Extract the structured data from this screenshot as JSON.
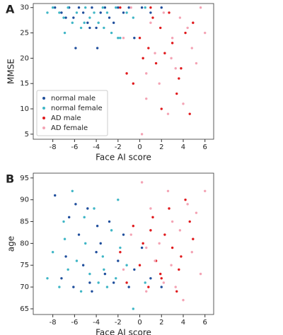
{
  "chart_data": [
    {
      "type": "scatter",
      "panel_label": "A",
      "xlabel": "Face AI score",
      "ylabel": "MMSE",
      "xlim": [
        -9.8,
        6.8
      ],
      "xticks": [
        -8,
        -6,
        -4,
        -2,
        0,
        2,
        4,
        6
      ],
      "ylim": [
        4,
        30.8
      ],
      "yticks": [
        5,
        10,
        15,
        20,
        25,
        30
      ],
      "legend": "lower left",
      "series": [
        {
          "name": "normal male",
          "color": "#1f4e9c",
          "x": [
            -7.8,
            -7.2,
            -6.5,
            -6.1,
            -5.6,
            -5.2,
            -4.8,
            -4.4,
            -4.0,
            -3.6,
            -3.2,
            -2.8,
            -2.4,
            -2.0,
            -1.5,
            -1.0,
            -0.5,
            0.2,
            1.0,
            2.0,
            -5.9,
            -3.9,
            -6.8,
            -4.6
          ],
          "values": [
            30,
            29,
            30,
            28,
            30,
            29,
            27,
            30,
            26,
            29,
            30,
            28,
            27,
            30,
            29,
            30,
            24,
            30,
            29,
            30,
            22,
            22,
            28,
            26
          ]
        },
        {
          "name": "normal female",
          "color": "#3fb6c6",
          "x": [
            -8.5,
            -8.0,
            -7.4,
            -7.0,
            -6.6,
            -6.2,
            -5.8,
            -5.4,
            -5.0,
            -4.6,
            -4.2,
            -3.8,
            -3.4,
            -3.0,
            -2.6,
            -2.2,
            -1.8,
            -1.2,
            -0.6,
            0.5,
            -6.9,
            -5.1,
            -3.3,
            -2.0
          ],
          "values": [
            29,
            30,
            29,
            28,
            30,
            27,
            29,
            26,
            30,
            28,
            29,
            27,
            30,
            29,
            25,
            30,
            24,
            29,
            28,
            30,
            25,
            27,
            26,
            24
          ]
        },
        {
          "name": "AD male",
          "color": "#e0191c",
          "x": [
            -1.8,
            -1.2,
            -0.6,
            0.0,
            0.3,
            0.8,
            1.2,
            1.5,
            1.9,
            2.3,
            2.7,
            3.0,
            3.4,
            3.8,
            4.2,
            4.6,
            4.9,
            2.0,
            3.6,
            1.0
          ],
          "values": [
            30,
            17,
            15,
            24,
            20,
            22,
            28,
            19,
            26,
            21,
            29,
            23,
            13,
            18,
            25,
            9,
            27,
            10,
            16,
            30
          ]
        },
        {
          "name": "AD female",
          "color": "#f4a3b4",
          "x": [
            -1.5,
            -0.8,
            0.2,
            0.6,
            1.0,
            1.4,
            1.8,
            2.2,
            2.6,
            3.0,
            3.3,
            3.7,
            4.0,
            4.4,
            4.8,
            5.2,
            5.6,
            6.0,
            0.6,
            2.9
          ],
          "values": [
            24,
            30,
            5,
            12,
            27,
            21,
            15,
            29,
            9,
            24,
            18,
            28,
            11,
            26,
            22,
            19,
            30,
            25,
            17,
            20
          ]
        }
      ]
    },
    {
      "type": "scatter",
      "panel_label": "B",
      "xlabel": "Face AI score",
      "ylabel": "age",
      "xlim": [
        -9.8,
        6.8
      ],
      "xticks": [
        -8,
        -6,
        -4,
        -2,
        0,
        2,
        4,
        6
      ],
      "ylim": [
        63.7,
        96.1
      ],
      "yticks": [
        65,
        70,
        75,
        80,
        85,
        90,
        95
      ],
      "series": [
        {
          "color": "#1f4e9c",
          "x": [
            -7.8,
            -7.2,
            -6.5,
            -6.1,
            -5.6,
            -5.2,
            -4.8,
            -4.4,
            -4.0,
            -3.6,
            -3.2,
            -2.8,
            -2.4,
            -2.0,
            -1.5,
            -1.0,
            -0.5,
            0.2,
            1.0,
            2.0,
            -5.9,
            -3.9,
            -6.8,
            -4.6
          ],
          "values": [
            91,
            72,
            86,
            70,
            82,
            75,
            88,
            69,
            78,
            80,
            73,
            85,
            71,
            76,
            82,
            70,
            74,
            79,
            72,
            70,
            89,
            84,
            77,
            71
          ]
        },
        {
          "color": "#3fb6c6",
          "x": [
            -8.5,
            -8.0,
            -7.4,
            -7.0,
            -6.6,
            -6.2,
            -5.8,
            -5.4,
            -5.0,
            -4.6,
            -4.2,
            -3.8,
            -3.4,
            -3.0,
            -2.6,
            -2.2,
            -1.8,
            -1.2,
            -0.6,
            0.5,
            -6.9,
            -5.1,
            -3.3,
            -2.0
          ],
          "values": [
            72,
            78,
            70,
            85,
            74,
            92,
            76,
            69,
            80,
            73,
            88,
            71,
            77,
            70,
            83,
            72,
            79,
            75,
            65,
            71,
            81,
            86,
            74,
            90
          ]
        },
        {
          "color": "#e0191c",
          "x": [
            -1.8,
            -1.2,
            -0.6,
            0.0,
            0.3,
            0.8,
            1.2,
            1.5,
            1.9,
            2.3,
            2.7,
            3.0,
            3.4,
            3.8,
            4.2,
            4.6,
            4.9,
            2.0,
            3.6,
            1.0
          ],
          "values": [
            78,
            71,
            84,
            75,
            80,
            70,
            86,
            76,
            73,
            82,
            88,
            79,
            69,
            77,
            90,
            85,
            81,
            72,
            74,
            83
          ]
        },
        {
          "color": "#f4a3b4",
          "x": [
            -1.5,
            -0.8,
            0.2,
            0.6,
            1.0,
            1.4,
            1.8,
            2.2,
            2.6,
            3.0,
            3.3,
            3.7,
            4.0,
            4.4,
            4.8,
            5.2,
            5.6,
            6.0,
            0.6,
            2.9
          ],
          "values": [
            74,
            82,
            94,
            69,
            88,
            76,
            80,
            71,
            92,
            85,
            70,
            83,
            67,
            89,
            78,
            87,
            73,
            92,
            79,
            75
          ]
        }
      ]
    }
  ]
}
